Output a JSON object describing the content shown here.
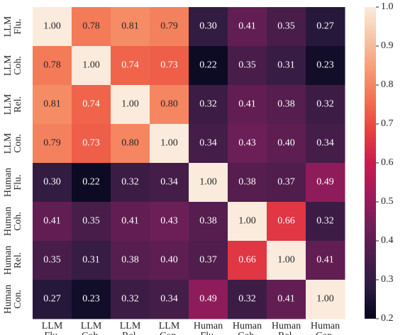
{
  "chart_data": {
    "type": "heatmap",
    "categories": [
      "LLM Flu.",
      "LLM Coh.",
      "LLM Rel.",
      "LLM Con.",
      "Human Flu.",
      "Human Coh.",
      "Human Rel.",
      "Human Con."
    ],
    "values": [
      [
        1.0,
        0.78,
        0.81,
        0.79,
        0.3,
        0.41,
        0.35,
        0.27
      ],
      [
        0.78,
        1.0,
        0.74,
        0.73,
        0.22,
        0.35,
        0.31,
        0.23
      ],
      [
        0.81,
        0.74,
        1.0,
        0.8,
        0.32,
        0.41,
        0.38,
        0.32
      ],
      [
        0.79,
        0.73,
        0.8,
        1.0,
        0.34,
        0.43,
        0.4,
        0.34
      ],
      [
        0.3,
        0.22,
        0.32,
        0.34,
        1.0,
        0.38,
        0.37,
        0.49
      ],
      [
        0.41,
        0.35,
        0.41,
        0.43,
        0.38,
        1.0,
        0.66,
        0.32
      ],
      [
        0.35,
        0.31,
        0.38,
        0.4,
        0.37,
        0.66,
        1.0,
        0.41
      ],
      [
        0.27,
        0.23,
        0.32,
        0.34,
        0.49,
        0.32,
        0.41,
        1.0
      ]
    ],
    "value_labels": [
      [
        "1.00",
        "0.78",
        "0.81",
        "0.79",
        "0.30",
        "0.41",
        "0.35",
        "0.27"
      ],
      [
        "0.78",
        "1.00",
        "0.74",
        "0.73",
        "0.22",
        "0.35",
        "0.31",
        "0.23"
      ],
      [
        "0.81",
        "0.74",
        "1.00",
        "0.80",
        "0.32",
        "0.41",
        "0.38",
        "0.32"
      ],
      [
        "0.79",
        "0.73",
        "0.80",
        "1.00",
        "0.34",
        "0.43",
        "0.40",
        "0.34"
      ],
      [
        "0.30",
        "0.22",
        "0.32",
        "0.34",
        "1.00",
        "0.38",
        "0.37",
        "0.49"
      ],
      [
        "0.41",
        "0.35",
        "0.41",
        "0.43",
        "0.38",
        "1.00",
        "0.66",
        "0.32"
      ],
      [
        "0.35",
        "0.31",
        "0.38",
        "0.40",
        "0.37",
        "0.66",
        "1.00",
        "0.41"
      ],
      [
        "0.27",
        "0.23",
        "0.32",
        "0.34",
        "0.49",
        "0.32",
        "0.41",
        "1.00"
      ]
    ],
    "colormap": "rocket",
    "colors": [
      "#03051a",
      "#2b1b3f",
      "#4c1d4b",
      "#701f57",
      "#a11a5b",
      "#cb1b4f",
      "#e83f3f",
      "#f3704f",
      "#f69c73",
      "#f7c5a4",
      "#faebdd"
    ],
    "clim": [
      0.2,
      1.0
    ],
    "cticks": [
      {
        "value": 0.2,
        "label": "0.2"
      },
      {
        "value": 0.3,
        "label": "0.3"
      },
      {
        "value": 0.4,
        "label": "0.4"
      },
      {
        "value": 0.5,
        "label": "0.5"
      },
      {
        "value": 0.6,
        "label": "0.6"
      },
      {
        "value": 0.7,
        "label": "0.7"
      },
      {
        "value": 0.8,
        "label": "0.8"
      },
      {
        "value": 0.9,
        "label": "0.9"
      },
      {
        "value": 1.0,
        "label": "1.0"
      }
    ]
  }
}
